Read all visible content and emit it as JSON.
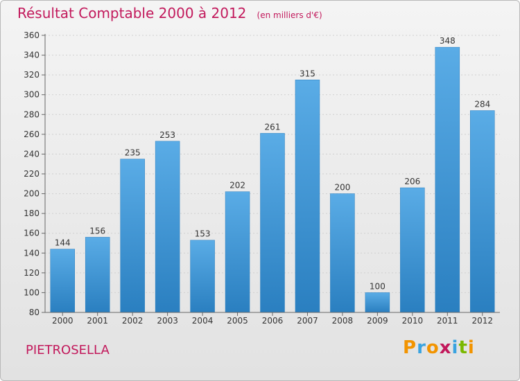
{
  "header": {
    "title": "Résultat Comptable 2000 à 2012",
    "unit": "(en milliers d'€)"
  },
  "footer": {
    "commune": "PIETROSELLA",
    "logo": "Proxiti",
    "logo_colors": [
      "#f29400",
      "#3aa3e0",
      "#f29400",
      "#c2185b",
      "#3aa3e0",
      "#7ab800",
      "#f29400"
    ]
  },
  "chart_data": {
    "type": "bar",
    "categories": [
      "2000",
      "2001",
      "2002",
      "2003",
      "2004",
      "2005",
      "2006",
      "2007",
      "2008",
      "2009",
      "2010",
      "2011",
      "2012"
    ],
    "values": [
      144,
      156,
      235,
      253,
      153,
      202,
      261,
      315,
      200,
      100,
      206,
      348,
      284
    ],
    "data_labels": [
      "144",
      "156",
      "235",
      "253",
      "153",
      "202",
      "261",
      "315",
      "200",
      "100",
      "206",
      "348",
      "284"
    ],
    "yticks": [
      "80",
      "100",
      "120",
      "140",
      "160",
      "180",
      "200",
      "220",
      "240",
      "260",
      "280",
      "300",
      "320",
      "340",
      "360"
    ],
    "ylim": [
      80,
      360
    ],
    "grid": true,
    "bar_color_top": "#5aace6",
    "bar_color_bottom": "#2a7fc0"
  }
}
